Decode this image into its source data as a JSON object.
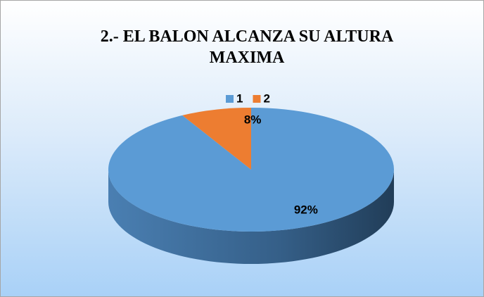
{
  "chart_data": {
    "type": "pie",
    "title": "2.- EL BALON ALCANZA SU ALTURA MAXIMA",
    "categories": [
      "1",
      "2"
    ],
    "values": [
      92,
      8
    ],
    "value_labels": [
      "92%",
      "8%"
    ],
    "colors": [
      "#5b9bd5",
      "#ed7d31"
    ],
    "legend": "top"
  }
}
